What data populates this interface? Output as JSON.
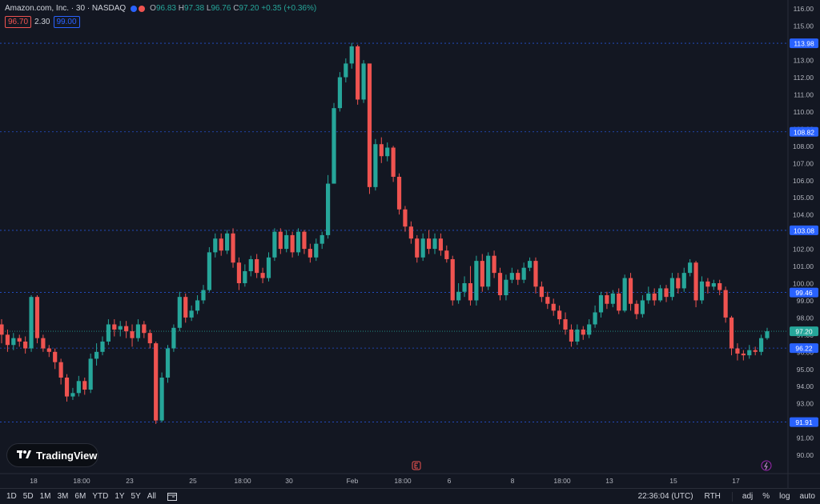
{
  "header": {
    "symbol_title": "Amazon.com, Inc. · 30 · NASDAQ",
    "ohlc": {
      "o_label": "O",
      "o_value": "96.83",
      "h_label": "H",
      "h_value": "97.38",
      "l_label": "L",
      "l_value": "96.76",
      "c_label": "C",
      "c_value": "97.20",
      "change": "+0.35 (+0.36%)"
    },
    "bid": "96.70",
    "spread": "2.30",
    "ask": "99.00"
  },
  "watermark": {
    "text": "TradingView"
  },
  "colors": {
    "background": "#131722",
    "up": "#26a69a",
    "down": "#ef5350",
    "level_line": "#2962ff",
    "axis_text": "#b2b5be",
    "current_price": "#26a69a"
  },
  "chart_data": {
    "type": "candlestick",
    "y_axis": {
      "min": 89,
      "max": 116.5,
      "ticks": [
        "116.00",
        "115.00",
        "114.00",
        "113.00",
        "112.00",
        "111.00",
        "110.00",
        "109.00",
        "108.00",
        "107.00",
        "106.00",
        "105.00",
        "104.00",
        "103.00",
        "102.00",
        "101.00",
        "100.00",
        "99.00",
        "98.00",
        "97.00",
        "96.00",
        "95.00",
        "94.00",
        "93.00",
        "92.00",
        "91.00",
        "90.00"
      ]
    },
    "x_axis_labels": [
      "18",
      "18:00",
      "23",
      "25",
      "18:00",
      "30",
      "Feb",
      "18:00",
      "6",
      "8",
      "18:00",
      "13",
      "15",
      "17"
    ],
    "horizontal_levels": [
      113.98,
      108.82,
      103.08,
      99.46,
      96.22,
      91.91
    ],
    "level_labels": [
      "113.98",
      "108.82",
      "103.08",
      "99.46",
      "96.22",
      "91.91"
    ],
    "current_price": 97.2,
    "current_price_label": "97.20",
    "segments": [
      {
        "open": 97.6,
        "close": 97.0,
        "high": 97.9,
        "low": 96.5
      },
      {
        "open": 97.0,
        "close": 96.4,
        "high": 97.3,
        "low": 96.0
      },
      {
        "open": 96.4,
        "close": 96.8,
        "high": 97.1,
        "low": 96.1
      },
      {
        "open": 96.8,
        "close": 96.6,
        "high": 97.0,
        "low": 96.3
      },
      {
        "open": 96.6,
        "close": 96.2,
        "high": 96.9,
        "low": 95.9
      },
      {
        "open": 96.2,
        "close": 99.2,
        "high": 99.3,
        "low": 96.0
      },
      {
        "open": 99.2,
        "close": 96.8,
        "high": 99.3,
        "low": 96.5
      },
      {
        "open": 96.8,
        "close": 96.2,
        "high": 97.0,
        "low": 96.0
      },
      {
        "open": 96.2,
        "close": 96.0,
        "high": 96.4,
        "low": 95.7
      },
      {
        "open": 96.0,
        "close": 95.4,
        "high": 96.2,
        "low": 95.0
      },
      {
        "open": 95.4,
        "close": 94.5,
        "high": 95.6,
        "low": 94.1
      },
      {
        "open": 94.5,
        "close": 93.4,
        "high": 94.7,
        "low": 93.1
      },
      {
        "open": 93.4,
        "close": 93.6,
        "high": 93.9,
        "low": 93.2
      },
      {
        "open": 93.6,
        "close": 94.3,
        "high": 94.6,
        "low": 93.4
      },
      {
        "open": 94.3,
        "close": 93.8,
        "high": 94.5,
        "low": 93.5
      },
      {
        "open": 93.8,
        "close": 95.6,
        "high": 95.9,
        "low": 93.6
      },
      {
        "open": 95.6,
        "close": 96.0,
        "high": 96.5,
        "low": 95.2
      },
      {
        "open": 96.0,
        "close": 96.6,
        "high": 96.9,
        "low": 95.8
      },
      {
        "open": 96.6,
        "close": 97.6,
        "high": 97.9,
        "low": 96.4
      },
      {
        "open": 97.6,
        "close": 97.3,
        "high": 97.9,
        "low": 96.9
      },
      {
        "open": 97.3,
        "close": 97.5,
        "high": 97.8,
        "low": 96.9
      },
      {
        "open": 97.5,
        "close": 97.2,
        "high": 97.8,
        "low": 96.8
      },
      {
        "open": 97.2,
        "close": 96.8,
        "high": 97.6,
        "low": 96.3
      },
      {
        "open": 96.8,
        "close": 97.6,
        "high": 97.9,
        "low": 96.6
      },
      {
        "open": 97.6,
        "close": 97.1,
        "high": 97.8,
        "low": 96.8
      },
      {
        "open": 97.1,
        "close": 96.5,
        "high": 97.3,
        "low": 96.2
      },
      {
        "open": 96.5,
        "close": 92.0,
        "high": 96.6,
        "low": 91.8
      },
      {
        "open": 92.0,
        "close": 94.5,
        "high": 94.8,
        "low": 91.9
      },
      {
        "open": 94.5,
        "close": 96.2,
        "high": 96.4,
        "low": 94.2
      },
      {
        "open": 96.2,
        "close": 97.4,
        "high": 97.6,
        "low": 96.0
      },
      {
        "open": 97.4,
        "close": 99.2,
        "high": 99.5,
        "low": 97.2
      },
      {
        "open": 99.2,
        "close": 98.0,
        "high": 99.4,
        "low": 97.7
      },
      {
        "open": 98.0,
        "close": 98.4,
        "high": 98.7,
        "low": 97.8
      },
      {
        "open": 98.4,
        "close": 99.0,
        "high": 99.3,
        "low": 98.2
      },
      {
        "open": 99.0,
        "close": 99.6,
        "high": 99.9,
        "low": 98.8
      },
      {
        "open": 99.6,
        "close": 101.8,
        "high": 102.1,
        "low": 99.5
      },
      {
        "open": 101.8,
        "close": 102.6,
        "high": 102.9,
        "low": 101.5
      },
      {
        "open": 102.6,
        "close": 101.9,
        "high": 102.9,
        "low": 101.6
      },
      {
        "open": 101.9,
        "close": 102.9,
        "high": 103.1,
        "low": 101.7
      },
      {
        "open": 102.9,
        "close": 101.2,
        "high": 103.2,
        "low": 100.9
      },
      {
        "open": 101.2,
        "close": 100.0,
        "high": 101.5,
        "low": 99.6
      },
      {
        "open": 100.0,
        "close": 100.7,
        "high": 101.1,
        "low": 99.8
      },
      {
        "open": 100.7,
        "close": 101.4,
        "high": 101.6,
        "low": 100.4
      },
      {
        "open": 101.4,
        "close": 100.6,
        "high": 101.7,
        "low": 100.3
      },
      {
        "open": 100.6,
        "close": 100.3,
        "high": 100.9,
        "low": 100.0
      },
      {
        "open": 100.3,
        "close": 101.5,
        "high": 101.8,
        "low": 100.1
      },
      {
        "open": 101.5,
        "close": 103.0,
        "high": 103.2,
        "low": 101.3
      },
      {
        "open": 103.0,
        "close": 102.0,
        "high": 103.2,
        "low": 101.7
      },
      {
        "open": 102.0,
        "close": 102.8,
        "high": 103.1,
        "low": 101.8
      },
      {
        "open": 102.8,
        "close": 101.8,
        "high": 103.0,
        "low": 101.5
      },
      {
        "open": 101.8,
        "close": 103.0,
        "high": 103.2,
        "low": 101.6
      },
      {
        "open": 103.0,
        "close": 102.0,
        "high": 103.1,
        "low": 101.7
      },
      {
        "open": 102.0,
        "close": 101.5,
        "high": 102.3,
        "low": 101.2
      },
      {
        "open": 101.5,
        "close": 102.3,
        "high": 102.6,
        "low": 101.3
      },
      {
        "open": 102.3,
        "close": 102.8,
        "high": 103.0,
        "low": 102.0
      },
      {
        "open": 102.8,
        "close": 105.8,
        "high": 106.3,
        "low": 102.6
      },
      {
        "open": 105.8,
        "close": 110.2,
        "high": 110.5,
        "low": 109.0
      },
      {
        "open": 110.2,
        "close": 112.0,
        "high": 112.3,
        "low": 110.0
      },
      {
        "open": 112.0,
        "close": 112.8,
        "high": 113.1,
        "low": 111.7
      },
      {
        "open": 112.8,
        "close": 113.8,
        "high": 114.0,
        "low": 112.5
      },
      {
        "open": 113.8,
        "close": 110.7,
        "high": 113.9,
        "low": 110.4
      },
      {
        "open": 110.7,
        "close": 112.8,
        "high": 113.0,
        "low": 110.5
      },
      {
        "open": 112.8,
        "close": 105.6,
        "high": 107.0,
        "low": 105.2
      },
      {
        "open": 105.6,
        "close": 108.1,
        "high": 108.4,
        "low": 105.4
      },
      {
        "open": 108.1,
        "close": 107.4,
        "high": 108.5,
        "low": 107.0
      },
      {
        "open": 107.4,
        "close": 107.9,
        "high": 108.2,
        "low": 107.1
      },
      {
        "open": 107.9,
        "close": 106.2,
        "high": 108.0,
        "low": 105.9
      },
      {
        "open": 106.2,
        "close": 104.3,
        "high": 106.4,
        "low": 104.0
      },
      {
        "open": 104.3,
        "close": 103.3,
        "high": 104.5,
        "low": 103.0
      },
      {
        "open": 103.3,
        "close": 102.6,
        "high": 103.6,
        "low": 102.3
      },
      {
        "open": 102.6,
        "close": 101.5,
        "high": 102.8,
        "low": 101.2
      },
      {
        "open": 101.5,
        "close": 102.6,
        "high": 102.9,
        "low": 101.3
      },
      {
        "open": 102.6,
        "close": 102.0,
        "high": 103.1,
        "low": 101.7
      },
      {
        "open": 102.0,
        "close": 102.6,
        "high": 102.9,
        "low": 101.7
      },
      {
        "open": 102.6,
        "close": 101.9,
        "high": 102.9,
        "low": 101.6
      },
      {
        "open": 101.9,
        "close": 101.4,
        "high": 102.2,
        "low": 101.2
      },
      {
        "open": 101.4,
        "close": 99.0,
        "high": 101.6,
        "low": 98.7
      },
      {
        "open": 99.0,
        "close": 99.5,
        "high": 100.0,
        "low": 98.8
      },
      {
        "open": 99.5,
        "close": 100.0,
        "high": 100.4,
        "low": 99.2
      },
      {
        "open": 100.0,
        "close": 99.0,
        "high": 101.0,
        "low": 98.7
      },
      {
        "open": 99.0,
        "close": 101.3,
        "high": 101.6,
        "low": 98.7
      },
      {
        "open": 101.3,
        "close": 99.8,
        "high": 101.7,
        "low": 99.5
      },
      {
        "open": 99.8,
        "close": 101.6,
        "high": 101.8,
        "low": 99.6
      },
      {
        "open": 101.6,
        "close": 100.6,
        "high": 101.9,
        "low": 100.3
      },
      {
        "open": 100.6,
        "close": 99.3,
        "high": 100.9,
        "low": 99.0
      },
      {
        "open": 99.3,
        "close": 100.2,
        "high": 100.5,
        "low": 99.0
      },
      {
        "open": 100.2,
        "close": 100.6,
        "high": 100.9,
        "low": 100.0
      },
      {
        "open": 100.6,
        "close": 100.2,
        "high": 100.8,
        "low": 99.9
      },
      {
        "open": 100.2,
        "close": 100.9,
        "high": 101.2,
        "low": 100.0
      },
      {
        "open": 100.9,
        "close": 101.3,
        "high": 101.5,
        "low": 100.7
      },
      {
        "open": 101.3,
        "close": 99.8,
        "high": 101.5,
        "low": 99.4
      },
      {
        "open": 99.8,
        "close": 99.2,
        "high": 100.1,
        "low": 98.9
      },
      {
        "open": 99.2,
        "close": 98.8,
        "high": 99.5,
        "low": 98.5
      },
      {
        "open": 98.8,
        "close": 98.4,
        "high": 99.1,
        "low": 98.1
      },
      {
        "open": 98.4,
        "close": 97.9,
        "high": 98.7,
        "low": 97.6
      },
      {
        "open": 97.9,
        "close": 97.3,
        "high": 98.3,
        "low": 97.0
      },
      {
        "open": 97.3,
        "close": 96.6,
        "high": 97.6,
        "low": 96.3
      },
      {
        "open": 96.6,
        "close": 97.3,
        "high": 97.6,
        "low": 96.4
      },
      {
        "open": 97.3,
        "close": 97.0,
        "high": 97.5,
        "low": 96.7
      },
      {
        "open": 97.0,
        "close": 97.6,
        "high": 97.9,
        "low": 96.8
      },
      {
        "open": 97.6,
        "close": 98.3,
        "high": 98.7,
        "low": 97.4
      },
      {
        "open": 98.3,
        "close": 99.3,
        "high": 99.5,
        "low": 98.0
      },
      {
        "open": 99.3,
        "close": 98.8,
        "high": 99.5,
        "low": 98.5
      },
      {
        "open": 98.8,
        "close": 99.4,
        "high": 99.6,
        "low": 98.6
      },
      {
        "open": 99.4,
        "close": 98.4,
        "high": 99.7,
        "low": 98.2
      },
      {
        "open": 98.4,
        "close": 100.3,
        "high": 100.5,
        "low": 98.3
      },
      {
        "open": 100.3,
        "close": 98.8,
        "high": 100.6,
        "low": 98.4
      },
      {
        "open": 98.8,
        "close": 98.2,
        "high": 99.0,
        "low": 97.9
      },
      {
        "open": 98.2,
        "close": 99.0,
        "high": 99.3,
        "low": 98.0
      },
      {
        "open": 99.0,
        "close": 99.4,
        "high": 99.8,
        "low": 98.8
      },
      {
        "open": 99.4,
        "close": 99.0,
        "high": 99.7,
        "low": 98.7
      },
      {
        "open": 99.0,
        "close": 99.7,
        "high": 99.9,
        "low": 98.9
      },
      {
        "open": 99.7,
        "close": 99.2,
        "high": 99.9,
        "low": 98.9
      },
      {
        "open": 99.2,
        "close": 100.3,
        "high": 100.6,
        "low": 99.0
      },
      {
        "open": 100.3,
        "close": 99.7,
        "high": 100.6,
        "low": 99.4
      },
      {
        "open": 99.7,
        "close": 100.6,
        "high": 100.9,
        "low": 99.5
      },
      {
        "open": 100.6,
        "close": 101.2,
        "high": 101.4,
        "low": 100.4
      },
      {
        "open": 101.2,
        "close": 99.0,
        "high": 101.3,
        "low": 98.6
      },
      {
        "open": 99.0,
        "close": 100.1,
        "high": 100.4,
        "low": 98.8
      },
      {
        "open": 100.1,
        "close": 99.8,
        "high": 100.3,
        "low": 99.4
      },
      {
        "open": 99.8,
        "close": 100.0,
        "high": 100.2,
        "low": 99.6
      },
      {
        "open": 100.0,
        "close": 99.6,
        "high": 100.2,
        "low": 99.3
      },
      {
        "open": 99.6,
        "close": 98.0,
        "high": 99.8,
        "low": 97.7
      },
      {
        "open": 98.0,
        "close": 96.2,
        "high": 98.1,
        "low": 95.8
      },
      {
        "open": 96.2,
        "close": 95.9,
        "high": 96.5,
        "low": 95.5
      },
      {
        "open": 95.9,
        "close": 95.8,
        "high": 96.1,
        "low": 95.5
      },
      {
        "open": 95.8,
        "close": 96.1,
        "high": 96.4,
        "low": 95.6
      },
      {
        "open": 96.1,
        "close": 96.0,
        "high": 96.3,
        "low": 95.8
      },
      {
        "open": 96.0,
        "close": 96.8,
        "high": 97.0,
        "low": 95.8
      },
      {
        "open": 96.8,
        "close": 97.2,
        "high": 97.4,
        "low": 96.7
      }
    ]
  },
  "bottom_bar": {
    "ranges": [
      "1D",
      "5D",
      "1M",
      "3M",
      "6M",
      "YTD",
      "1Y",
      "5Y",
      "All"
    ],
    "time": "22:36:04 (UTC)",
    "session": "RTH",
    "options": [
      "adj",
      "%",
      "log",
      "auto"
    ]
  }
}
